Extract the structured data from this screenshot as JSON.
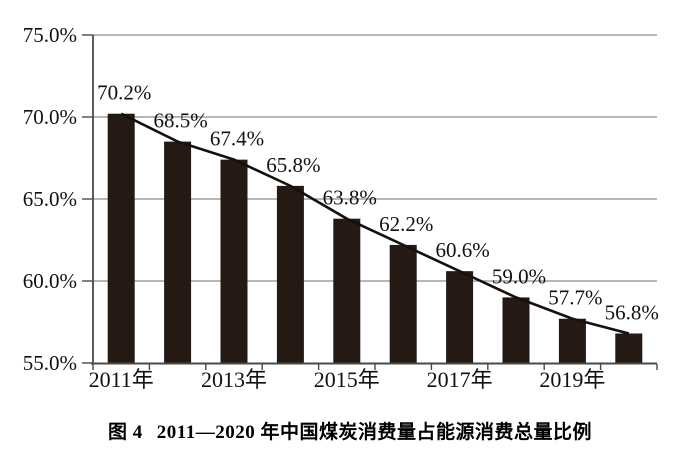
{
  "caption": {
    "figure_label": "图 4",
    "title": "2011—2020 年中国煤炭消费量占能源消费总量比例"
  },
  "chart_data": {
    "type": "bar",
    "title": "图 4 2011—2020 年中国煤炭消费量占能源消费总量比例",
    "categories": [
      "2011",
      "2012",
      "2013",
      "2014",
      "2015",
      "2016",
      "2017",
      "2018",
      "2019",
      "2020"
    ],
    "values": [
      70.2,
      68.5,
      67.4,
      65.8,
      63.8,
      62.2,
      60.6,
      59.0,
      57.7,
      56.8
    ],
    "bar_labels": [
      "70.2%",
      "68.5%",
      "67.4%",
      "65.8%",
      "63.8%",
      "62.2%",
      "60.6%",
      "59.0%",
      "57.7%",
      "56.8%"
    ],
    "x_tick_labels": [
      "2011年",
      "2013年",
      "2015年",
      "2017年",
      "2019年"
    ],
    "x_tick_category_indices": [
      0,
      2,
      4,
      6,
      8
    ],
    "y_tick_labels": [
      "75.0%",
      "70.0%",
      "65.0%",
      "60.0%",
      "55.0%"
    ],
    "y_tick_values": [
      75,
      70,
      65,
      60,
      55
    ],
    "ylim": [
      55,
      75
    ],
    "grid": true,
    "overlay_line": true,
    "legend": "none",
    "colors": {
      "bar": "#251a13",
      "line": "#16100c",
      "grid": "#8f8b88",
      "axis": "#4c4845",
      "text": "#111111",
      "background": "#ffffff"
    }
  }
}
